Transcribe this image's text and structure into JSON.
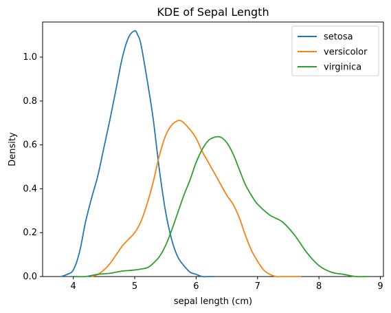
{
  "chart_data": {
    "type": "line",
    "title": "KDE of Sepal Length",
    "xlabel": "sepal length (cm)",
    "ylabel": "Density",
    "xlim": [
      3.5,
      9.05
    ],
    "ylim": [
      0,
      1.16
    ],
    "xticks": [
      4,
      5,
      6,
      7,
      8,
      9
    ],
    "yticks": [
      0.0,
      0.2,
      0.4,
      0.6,
      0.8,
      1.0
    ],
    "grid": false,
    "legend_position": "top-right",
    "series": [
      {
        "name": "setosa",
        "color": "#1f77b4",
        "x": [
          3.8,
          3.9,
          4.0,
          4.1,
          4.2,
          4.3,
          4.4,
          4.5,
          4.6,
          4.7,
          4.8,
          4.9,
          5.0,
          5.05,
          5.1,
          5.2,
          5.3,
          5.4,
          5.5,
          5.6,
          5.7,
          5.8,
          5.9,
          6.0,
          6.1,
          6.2,
          6.3
        ],
        "y": [
          0.0,
          0.01,
          0.03,
          0.11,
          0.25,
          0.36,
          0.46,
          0.59,
          0.72,
          0.86,
          1.0,
          1.09,
          1.12,
          1.1,
          1.06,
          0.9,
          0.72,
          0.49,
          0.3,
          0.17,
          0.09,
          0.05,
          0.02,
          0.01,
          0.0,
          0.0,
          0.0
        ]
      },
      {
        "name": "versicolor",
        "color": "#ff7f0e",
        "x": [
          4.3,
          4.4,
          4.5,
          4.6,
          4.7,
          4.8,
          4.9,
          5.0,
          5.1,
          5.2,
          5.3,
          5.4,
          5.5,
          5.6,
          5.7,
          5.75,
          5.8,
          5.9,
          6.0,
          6.1,
          6.2,
          6.3,
          6.4,
          6.5,
          6.6,
          6.7,
          6.8,
          6.9,
          7.0,
          7.1,
          7.2,
          7.3,
          7.4,
          7.5,
          7.6,
          7.7
        ],
        "y": [
          0.0,
          0.01,
          0.03,
          0.06,
          0.1,
          0.14,
          0.17,
          0.2,
          0.25,
          0.33,
          0.43,
          0.55,
          0.64,
          0.69,
          0.71,
          0.71,
          0.7,
          0.67,
          0.63,
          0.57,
          0.52,
          0.47,
          0.42,
          0.37,
          0.33,
          0.27,
          0.19,
          0.12,
          0.07,
          0.03,
          0.01,
          0.0,
          0.0,
          0.0,
          0.0,
          0.0
        ]
      },
      {
        "name": "virginica",
        "color": "#2ca02c",
        "x": [
          4.0,
          4.2,
          4.4,
          4.6,
          4.8,
          5.0,
          5.2,
          5.3,
          5.4,
          5.5,
          5.6,
          5.7,
          5.8,
          5.9,
          6.0,
          6.1,
          6.2,
          6.3,
          6.4,
          6.5,
          6.6,
          6.7,
          6.8,
          6.9,
          7.0,
          7.2,
          7.4,
          7.6,
          7.8,
          8.0,
          8.2,
          8.4,
          8.6,
          8.8
        ],
        "y": [
          0.0,
          0.0,
          0.01,
          0.015,
          0.025,
          0.03,
          0.04,
          0.06,
          0.09,
          0.14,
          0.21,
          0.29,
          0.37,
          0.44,
          0.52,
          0.58,
          0.62,
          0.635,
          0.635,
          0.61,
          0.56,
          0.49,
          0.42,
          0.37,
          0.33,
          0.28,
          0.25,
          0.19,
          0.11,
          0.05,
          0.02,
          0.01,
          0.0,
          0.0
        ]
      }
    ]
  }
}
